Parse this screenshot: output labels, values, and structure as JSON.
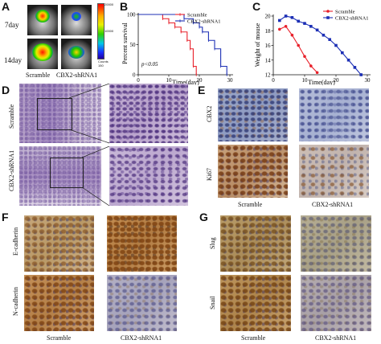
{
  "panels": {
    "A": {
      "letter": "A",
      "rows": [
        "7day",
        "14day"
      ],
      "columns": [
        "Scramble",
        "CBX2-shRNA1"
      ],
      "colorbar": {
        "top": "20000",
        "mid": "10000",
        "bottom": "Counts",
        "unit": "150"
      }
    },
    "D": {
      "letter": "D",
      "rows": [
        "Scramble",
        "CBX2-shRNA1"
      ]
    },
    "E": {
      "letter": "E",
      "rows": [
        "CBX2",
        "Ki67"
      ],
      "columns": [
        "Scramble",
        "CBX2-shRNA1"
      ]
    },
    "F": {
      "letter": "F",
      "rows": [
        "E-cadherin",
        "N-cadherin"
      ],
      "columns": [
        "Scramble",
        "CBX2-shRNA1"
      ]
    },
    "G": {
      "letter": "G",
      "rows": [
        "Slug",
        "Snail"
      ],
      "columns": [
        "Scramble",
        "CBX2-shRNA1"
      ]
    }
  },
  "chart_data": [
    {
      "panel": "B",
      "type": "line",
      "step": true,
      "xlabel": "Time(day)",
      "ylabel": "Percent survival",
      "xlim": [
        0,
        30
      ],
      "ylim": [
        0,
        100
      ],
      "xticks": [
        0,
        10,
        20,
        30
      ],
      "yticks": [
        0,
        50,
        100
      ],
      "annotation": "p<0.05",
      "legend_position": "top-right",
      "series": [
        {
          "name": "Scramble",
          "color": "#e8202a",
          "x": [
            0,
            8,
            10,
            12,
            14,
            16,
            17,
            18,
            19
          ],
          "y": [
            100,
            93,
            86,
            79,
            71,
            57,
            43,
            14,
            0
          ]
        },
        {
          "name": "CBX2-shRNA1",
          "color": "#1c2fb5",
          "x": [
            0,
            15,
            18,
            20,
            21,
            23,
            25,
            27,
            29
          ],
          "y": [
            100,
            93,
            86,
            79,
            71,
            57,
            43,
            14,
            0
          ]
        }
      ]
    },
    {
      "panel": "C",
      "type": "line",
      "xlabel": "Time(day)",
      "ylabel": "Weight of mouse",
      "xlim": [
        0,
        30
      ],
      "ylim": [
        12,
        20
      ],
      "xticks": [
        0,
        10,
        20,
        30
      ],
      "yticks": [
        12,
        14,
        16,
        18,
        20
      ],
      "legend_position": "top-right",
      "series": [
        {
          "name": "Scramble",
          "color": "#e8202a",
          "x": [
            2,
            4,
            6,
            8,
            10,
            12,
            14
          ],
          "y": [
            18.2,
            18.6,
            17.4,
            16.0,
            14.5,
            13.2,
            12.3
          ]
        },
        {
          "name": "CBX2-shRNA1",
          "color": "#1c2fb5",
          "x": [
            2,
            4,
            6,
            8,
            10,
            12,
            14,
            16,
            18,
            20,
            22,
            24,
            26,
            28
          ],
          "y": [
            19.4,
            20.0,
            19.8,
            19.3,
            19.0,
            18.6,
            18.1,
            17.4,
            16.8,
            16.0,
            15.0,
            14.0,
            13.0,
            12.0
          ]
        }
      ]
    }
  ]
}
